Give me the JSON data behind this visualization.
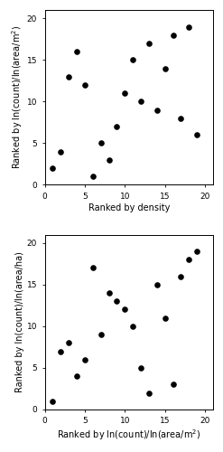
{
  "plot1": {
    "x": [
      1,
      2,
      3,
      4,
      5,
      6,
      7,
      8,
      9,
      10,
      11,
      12,
      13,
      14,
      15,
      16,
      17,
      18,
      19
    ],
    "y": [
      2,
      4,
      13,
      16,
      12,
      1,
      5,
      3,
      7,
      11,
      15,
      10,
      17,
      9,
      14,
      18,
      8,
      19,
      6
    ],
    "xlabel": "Ranked by density",
    "ylabel": "Ranked by ln(count)/ln(area/m$^2$)"
  },
  "plot2": {
    "x": [
      1,
      2,
      3,
      4,
      5,
      6,
      7,
      8,
      9,
      10,
      11,
      12,
      13,
      14,
      15,
      16,
      17,
      18,
      19
    ],
    "y": [
      1,
      7,
      8,
      4,
      6,
      17,
      9,
      14,
      13,
      12,
      10,
      5,
      2,
      15,
      11,
      3,
      16,
      18,
      19
    ],
    "xlabel": "Ranked by ln(count)/ln(area/m$^2$)",
    "ylabel": "Ranked by ln(count)/ln(area/ha)"
  },
  "xlim": [
    0,
    21
  ],
  "ylim": [
    0,
    21
  ],
  "xticks": [
    0,
    5,
    10,
    15,
    20
  ],
  "yticks": [
    0,
    5,
    10,
    15,
    20
  ],
  "dot_color": "#000000",
  "dot_size": 14,
  "background_color": "#ffffff",
  "axes_bg_color": "#ffffff",
  "tick_fontsize": 6.5,
  "label_fontsize": 7
}
